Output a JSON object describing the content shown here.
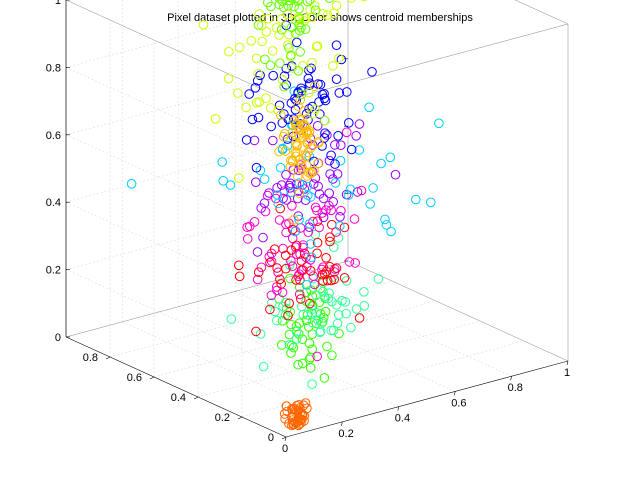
{
  "title": "Pixel dataset plotted in 3D. Color shows centroid memberships",
  "chart_data": {
    "type": "scatter",
    "view": "3d",
    "marker": "open-circle",
    "grid": true,
    "xlim": [
      0,
      1
    ],
    "ylim": [
      0,
      1
    ],
    "zlim": [
      0,
      1
    ],
    "x_ticks": [
      "0",
      "0.2",
      "0.4",
      "0.6",
      "0.8",
      "1"
    ],
    "y_ticks": [
      "0",
      "0.2",
      "0.4",
      "0.6",
      "0.8"
    ],
    "z_ticks": [
      "0",
      "0.2",
      "0.4",
      "0.6",
      "0.8",
      "1"
    ],
    "clusters": [
      {
        "color": "#ff6600",
        "center": [
          0.05,
          0.02,
          0.05
        ],
        "spread": [
          0.02,
          0.01,
          0.02
        ],
        "count": 40
      },
      {
        "color": "#33ff00",
        "center": [
          0.14,
          0.08,
          0.26
        ],
        "spread": [
          0.05,
          0.03,
          0.07
        ],
        "count": 45
      },
      {
        "color": "#33ff99",
        "center": [
          0.3,
          0.25,
          0.25
        ],
        "spread": [
          0.1,
          0.05,
          0.07
        ],
        "count": 50
      },
      {
        "color": "#ff00cc",
        "center": [
          0.26,
          0.22,
          0.45
        ],
        "spread": [
          0.1,
          0.05,
          0.1
        ],
        "count": 65
      },
      {
        "color": "#ff0000",
        "center": [
          0.35,
          0.4,
          0.3
        ],
        "spread": [
          0.1,
          0.05,
          0.08
        ],
        "count": 45
      },
      {
        "color": "#9900ff",
        "center": [
          0.28,
          0.3,
          0.6
        ],
        "spread": [
          0.1,
          0.05,
          0.08
        ],
        "count": 55
      },
      {
        "color": "#00ccff",
        "center": [
          0.5,
          0.55,
          0.5
        ],
        "spread": [
          0.18,
          0.15,
          0.1
        ],
        "count": 45
      },
      {
        "color": "#0000ff",
        "center": [
          0.4,
          0.45,
          0.75
        ],
        "spread": [
          0.08,
          0.05,
          0.08
        ],
        "count": 65
      },
      {
        "color": "#ffbb00",
        "center": [
          0.36,
          0.4,
          0.68
        ],
        "spread": [
          0.03,
          0.03,
          0.08
        ],
        "count": 60
      },
      {
        "color": "#ccff00",
        "center": [
          0.25,
          0.32,
          0.95
        ],
        "spread": [
          0.12,
          0.05,
          0.12
        ],
        "count": 55
      },
      {
        "color": "#66ff00",
        "center": [
          0.35,
          0.42,
          1.05
        ],
        "spread": [
          0.04,
          0.03,
          0.12
        ],
        "count": 45
      }
    ]
  }
}
